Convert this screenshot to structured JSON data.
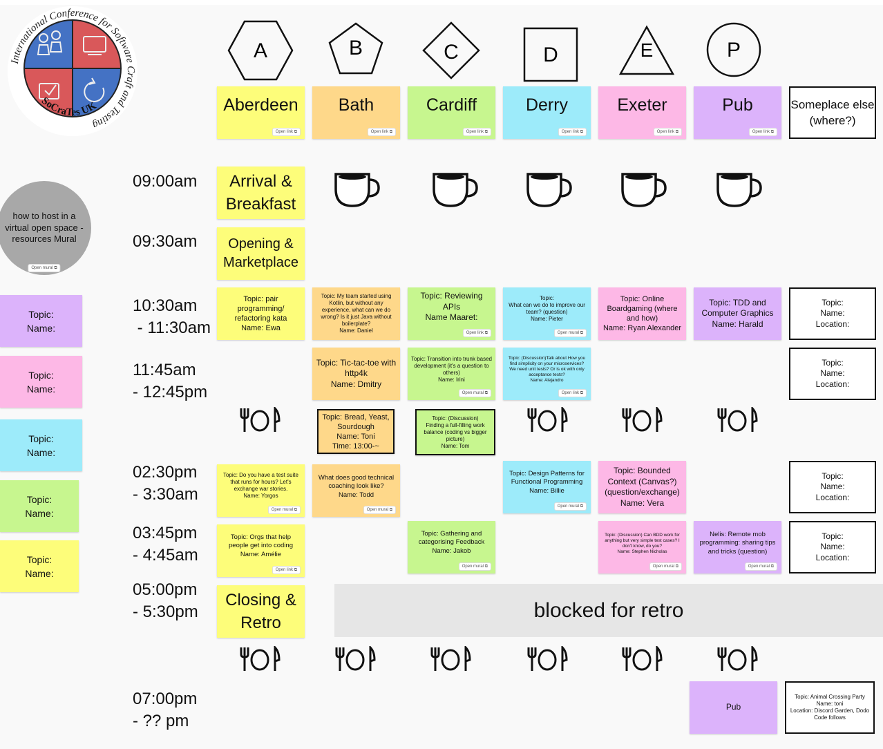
{
  "logo": {
    "ring_text": "International Conference for Software Craft and Testing",
    "brand": "SoCraTes UK"
  },
  "open_link_label": "Open link ⧉",
  "open_mural_label": "Open mural ⧉",
  "rooms": [
    {
      "letter": "A",
      "shape": "hexagon",
      "name": "Aberdeen",
      "color": "#fdfd7a"
    },
    {
      "letter": "B",
      "shape": "pentagon",
      "name": "Bath",
      "color": "#fed88a"
    },
    {
      "letter": "C",
      "shape": "diamond",
      "name": "Cardiff",
      "color": "#c7f68f"
    },
    {
      "letter": "D",
      "shape": "square",
      "name": "Derry",
      "color": "#9debfa"
    },
    {
      "letter": "E",
      "shape": "triangle",
      "name": "Exeter",
      "color": "#fdb8e6"
    },
    {
      "letter": "P",
      "shape": "circle",
      "name": "Pub",
      "color": "#dcb3fb"
    }
  ],
  "room_other": "Someplace else (where?)",
  "times": {
    "t0900": "09:00am",
    "t0930": "09:30am",
    "t1030": "10:30am\n - 11:30am",
    "t1145": "11:45am\n- 12:45pm",
    "t1430": "02:30pm\n- 3:30am",
    "t1545": "03:45pm\n- 4:45am",
    "t1700": "05:00pm\n- 5:30pm",
    "t1900": "07:00pm\n- ?? pm"
  },
  "fixed": {
    "arrival": "Arrival & Breakfast",
    "opening": "Opening & Marketplace",
    "closing": "Closing & Retro",
    "retro_block": "blocked for retro",
    "evening_pub": "Pub",
    "evening_other": "Topic: Animal Crossing Party\nName: toni\nLocation: Discord Garden, Dodo Code follows"
  },
  "host_resources": "how to host in a virtual open space - resources Mural",
  "side_templates": [
    {
      "text": "Topic:\nName:",
      "color": "#dcb3fb"
    },
    {
      "text": "Topic:\nName:",
      "color": "#fdb8e6"
    },
    {
      "text": "Topic:\nName:",
      "color": "#9debfa"
    },
    {
      "text": "Topic:\nName:",
      "color": "#c7f68f"
    },
    {
      "text": "Topic:\nName:",
      "color": "#fdfd7a"
    }
  ],
  "sessions": {
    "s1030_aberdeen": "Topic: pair programming/ refactoring kata\nName: Ewa",
    "s1030_bath": "Topic: My team started using Kotlin, but without any experience, what can we do wrong? Is it just Java without boilerplate?\nName: Daniel",
    "s1030_cardiff": "Topic: Reviewing APIs\nName Maaret:",
    "s1030_derry": "Topic:\nWhat can we do to improve our team? (question)\nName: Pieter",
    "s1030_exeter": "Topic: Online Boardgaming (where and how)\nName: Ryan Alexander",
    "s1030_pub": "Topic: TDD and Computer Graphics\nName:  Harald",
    "s1030_other": "Topic:\nName:\nLocation:",
    "s1145_bath": "Topic: Tic-tac-toe with http4k\nName: Dmitry",
    "s1145_cardiff": "Topic: Transition into trunk based development (it's a question to others)\nName: Irini",
    "s1145_derry": "Topic: (Discussion)Talk about How you find simplicity on your microservices? We need unit tests? Or is ok with only acceptance tests?\nName: Alejandro",
    "s1145_other": "Topic:\nName:\nLocation:",
    "lunch_bath": "Topic: Bread, Yeast, Sourdough\nName: Toni\nTime: 13:00-~",
    "lunch_cardiff": "Topic: (Discussion)\nFinding a full-filling work balance (coding vs bigger picture)\nName:  Tom",
    "s1430_aberdeen": "Topic: Do you have a test suite that runs for hours? Let's exchange war stories.\nName: Yorgos",
    "s1430_bath": "What does good technical coaching look like?\nName: Todd",
    "s1430_derry": "Topic: Design Patterns for Functional Programming\nName: Billie",
    "s1430_exeter": "Topic: Bounded Context (Canvas?) (question/exchange)\nName: Vera",
    "s1430_other": "Topic:\nName:\nLocation:",
    "s1545_aberdeen": "Topic: Orgs that help people get into coding\nName: Amélie",
    "s1545_cardiff": "Topic: Gathering and categorising Feedback\nName: Jakob",
    "s1545_exeter": "Topic: (Discussion) Can BDD work for anything but very simple test cases? I don't know, do you?\nName: Stephen Nicholas",
    "s1545_pub": "Nelis: Remote mob programming: sharing tips and tricks (question)",
    "s1545_other": "Topic:\nName:\nLocation:"
  },
  "icons": {
    "break": "coffee-cup-icon",
    "meal": "fork-knife-icon"
  }
}
